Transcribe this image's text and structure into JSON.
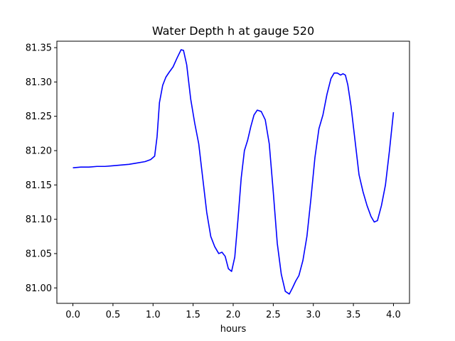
{
  "chart_data": {
    "type": "line",
    "title": "Water Depth h at gauge 520",
    "xlabel": "hours",
    "ylabel": "",
    "xlim": [
      -0.2,
      4.2
    ],
    "ylim": [
      80.9775,
      81.3594
    ],
    "xticks": [
      0.0,
      0.5,
      1.0,
      1.5,
      2.0,
      2.5,
      3.0,
      3.5,
      4.0
    ],
    "xtick_labels": [
      "0.0",
      "0.5",
      "1.0",
      "1.5",
      "2.0",
      "2.5",
      "3.0",
      "3.5",
      "4.0"
    ],
    "yticks": [
      81.0,
      81.05,
      81.1,
      81.15,
      81.2,
      81.25,
      81.3,
      81.35
    ],
    "ytick_labels": [
      "81.00",
      "81.05",
      "81.10",
      "81.15",
      "81.20",
      "81.25",
      "81.30",
      "81.35"
    ],
    "grid": false,
    "series": [
      {
        "color": "#0000ff",
        "x": [
          0.0,
          0.1,
          0.2,
          0.3,
          0.4,
          0.5,
          0.6,
          0.7,
          0.8,
          0.9,
          0.97,
          1.02,
          1.05,
          1.08,
          1.12,
          1.16,
          1.2,
          1.25,
          1.3,
          1.35,
          1.38,
          1.42,
          1.47,
          1.52,
          1.57,
          1.62,
          1.67,
          1.72,
          1.77,
          1.82,
          1.86,
          1.9,
          1.94,
          1.98,
          2.02,
          2.06,
          2.1,
          2.14,
          2.18,
          2.22,
          2.26,
          2.3,
          2.35,
          2.4,
          2.45,
          2.5,
          2.55,
          2.6,
          2.65,
          2.7,
          2.74,
          2.78,
          2.82,
          2.87,
          2.92,
          2.97,
          3.02,
          3.07,
          3.12,
          3.17,
          3.22,
          3.26,
          3.3,
          3.34,
          3.37,
          3.4,
          3.43,
          3.47,
          3.52,
          3.57,
          3.62,
          3.67,
          3.72,
          3.76,
          3.8,
          3.85,
          3.9,
          3.95,
          4.0
        ],
        "y": [
          81.175,
          81.176,
          81.176,
          81.177,
          81.177,
          81.178,
          81.179,
          81.18,
          81.182,
          81.184,
          81.187,
          81.192,
          81.22,
          81.27,
          81.295,
          81.307,
          81.314,
          81.322,
          81.335,
          81.347,
          81.346,
          81.325,
          81.275,
          81.24,
          81.21,
          81.16,
          81.11,
          81.075,
          81.06,
          81.05,
          81.052,
          81.046,
          81.028,
          81.024,
          81.045,
          81.1,
          81.16,
          81.2,
          81.215,
          81.235,
          81.252,
          81.259,
          81.257,
          81.245,
          81.21,
          81.14,
          81.065,
          81.02,
          80.995,
          80.991,
          81.0,
          81.01,
          81.018,
          81.04,
          81.075,
          81.13,
          81.19,
          81.232,
          81.252,
          81.282,
          81.305,
          81.313,
          81.313,
          81.31,
          81.312,
          81.31,
          81.296,
          81.265,
          81.215,
          81.165,
          81.14,
          81.12,
          81.104,
          81.096,
          81.098,
          81.12,
          81.15,
          81.2,
          81.256
        ]
      }
    ]
  }
}
